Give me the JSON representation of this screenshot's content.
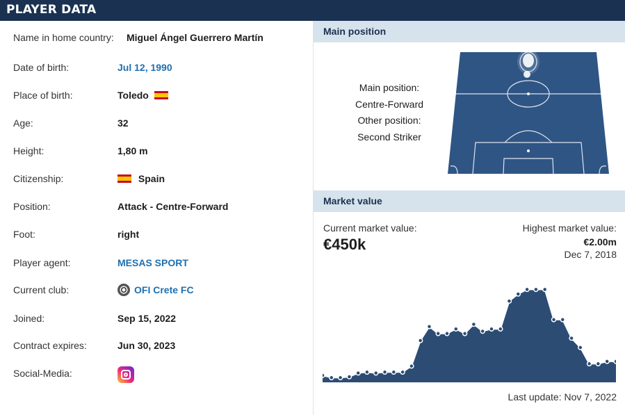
{
  "header": {
    "title": "PLAYER DATA"
  },
  "player": {
    "rows": [
      {
        "label": "Name in home country:",
        "value": "Miguel Ángel Guerrero Martín"
      },
      {
        "label": "Date of birth:",
        "value": "Jul 12, 1990"
      },
      {
        "label": "Place of birth:",
        "value": "Toledo"
      },
      {
        "label": "Age:",
        "value": "32"
      },
      {
        "label": "Height:",
        "value": "1,80 m"
      },
      {
        "label": "Citizenship:",
        "value": "Spain"
      },
      {
        "label": "Position:",
        "value": "Attack - Centre-Forward"
      },
      {
        "label": "Foot:",
        "value": "right"
      },
      {
        "label": "Player agent:",
        "value": "MESAS SPORT"
      },
      {
        "label": "Current club:",
        "value": "OFI Crete FC"
      },
      {
        "label": "Joined:",
        "value": "Sep 15, 2022"
      },
      {
        "label": "Contract expires:",
        "value": "Jun 30, 2023"
      },
      {
        "label": "Social-Media:",
        "value": ""
      }
    ],
    "icons": {
      "birth_flag": "spain-flag-icon",
      "citizenship_flag": "spain-flag-icon",
      "club_logo": "ofi-crete-logo-icon",
      "social": "instagram-icon"
    }
  },
  "main_position": {
    "heading": "Main position",
    "main_label": "Main position:",
    "main_value": "Centre-Forward",
    "other_label": "Other position:",
    "other_value": "Second Striker"
  },
  "market_value": {
    "heading": "Market value",
    "current_label": "Current market value:",
    "current_value": "€450k",
    "highest_label": "Highest market value:",
    "highest_value": "€2.00m",
    "highest_date": "Dec 7, 2018",
    "last_update": "Last update: Nov 7, 2022"
  },
  "colors": {
    "header_bg": "#1a3151",
    "section_head_bg": "#d7e3ec",
    "link": "#1f6fae",
    "chart_fill": "#2c4c74",
    "pitch": "#2f5585"
  },
  "chart_data": {
    "type": "area",
    "title": "",
    "xlabel": "",
    "ylabel": "",
    "ylim": [
      0,
      2.2
    ],
    "values": [
      0.15,
      0.1,
      0.1,
      0.12,
      0.2,
      0.22,
      0.2,
      0.22,
      0.22,
      0.22,
      0.35,
      0.9,
      1.2,
      1.05,
      1.05,
      1.15,
      1.05,
      1.25,
      1.1,
      1.15,
      1.15,
      1.75,
      1.9,
      2.0,
      2.0,
      2.0,
      1.35,
      1.35,
      0.95,
      0.75,
      0.4,
      0.4,
      0.45,
      0.45
    ]
  }
}
